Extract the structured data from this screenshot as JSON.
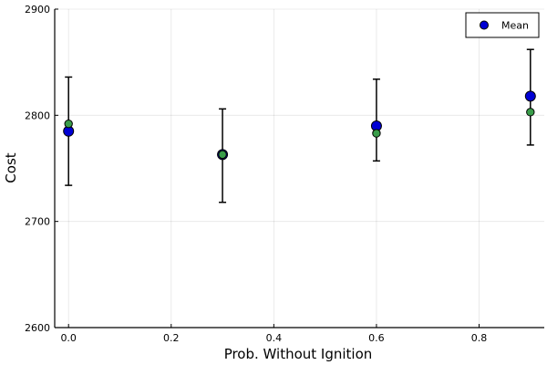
{
  "chart_data": {
    "type": "scatter",
    "title": "",
    "xlabel": "Prob. Without Ignition",
    "ylabel": "Cost",
    "xlim": [
      -0.027,
      0.927
    ],
    "ylim": [
      2600,
      2900
    ],
    "xticks": [
      0.0,
      0.2,
      0.4,
      0.6,
      0.8
    ],
    "xtick_labels": [
      "0.0",
      "0.2",
      "0.4",
      "0.6",
      "0.8"
    ],
    "yticks": [
      2600,
      2700,
      2800,
      2900
    ],
    "ytick_labels": [
      "2600",
      "2700",
      "2800",
      "2900"
    ],
    "grid": true,
    "legend": {
      "position": "top-right",
      "entries": [
        "Mean"
      ]
    },
    "series": [
      {
        "name": "Mean",
        "color": "#0000d4",
        "x": [
          0.0,
          0.3,
          0.6,
          0.9
        ],
        "y": [
          2785,
          2763,
          2790,
          2818
        ],
        "error_low": [
          2734,
          2718,
          2757,
          2772
        ],
        "error_high": [
          2836,
          2806,
          2834,
          2862
        ]
      },
      {
        "color": "#3a9d4a",
        "x": [
          0.0,
          0.3,
          0.6,
          0.9
        ],
        "y": [
          2792,
          2763,
          2783,
          2803
        ]
      }
    ]
  }
}
